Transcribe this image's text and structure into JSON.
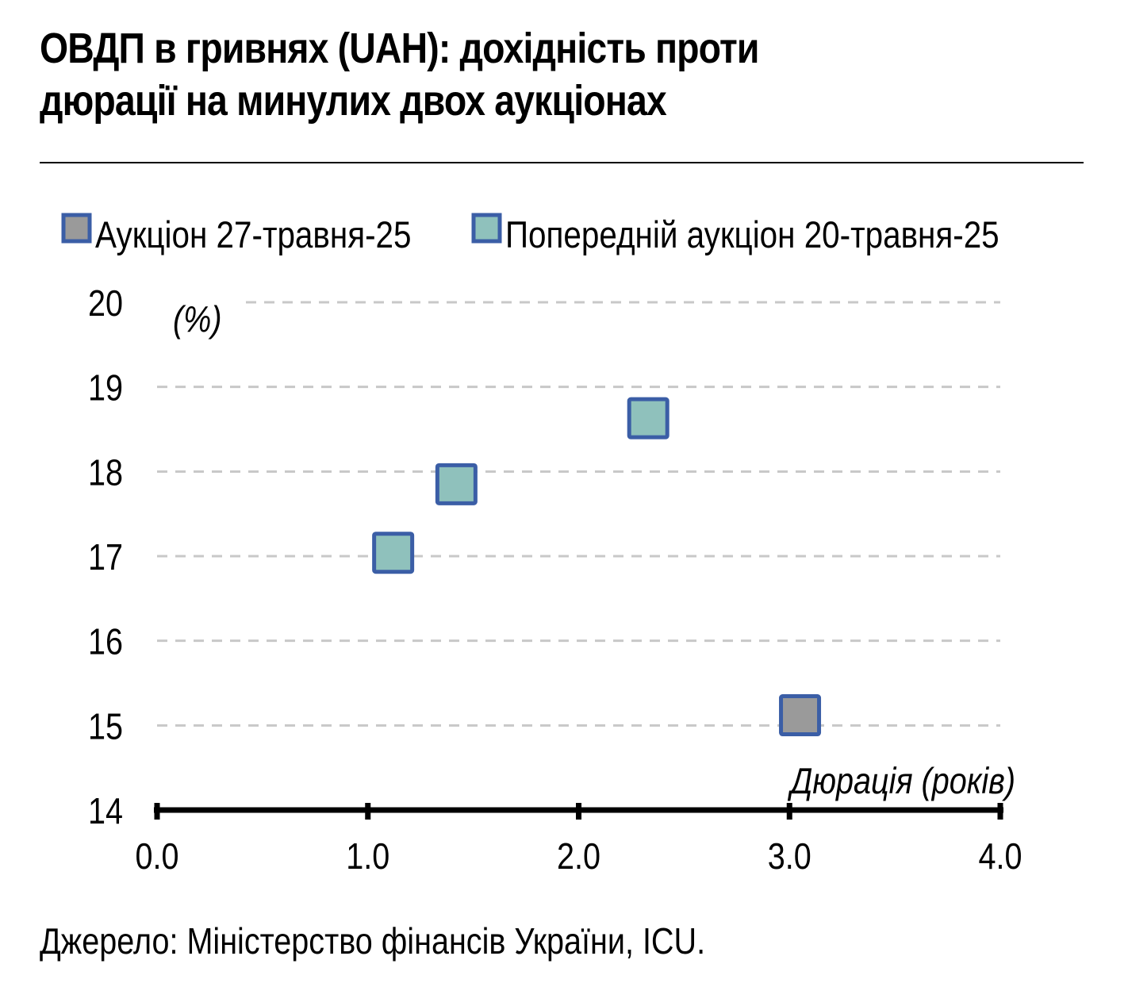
{
  "header": {
    "title_line1": "ОВДП в гривнях (UAH): дохідність проти",
    "title_line2": "дюрації на минулих двох аукціонах"
  },
  "footer": {
    "source": "Джерело: Міністерство фінансів України, ICU."
  },
  "colors": {
    "current_fill": "#9a9a9a",
    "previous_fill": "#8fc1bc",
    "marker_border": "#3b5ea6",
    "grid": "#c8c8c8",
    "axis": "#000000"
  },
  "chart_data": {
    "type": "scatter",
    "title": "ОВДП в гривнях (UAH): дохідність проти дюрації на минулих двох аукціонах",
    "xlabel": "Дюрація (років)",
    "ylabel": "(%)",
    "xlim": [
      0,
      4
    ],
    "ylim": [
      14,
      20
    ],
    "x_ticks": [
      "0.0",
      "1.0",
      "2.0",
      "3.0",
      "4.0"
    ],
    "y_ticks": [
      "14",
      "15",
      "16",
      "17",
      "18",
      "19",
      "20"
    ],
    "grid": "horizontal dashed",
    "legend_position": "top",
    "series": [
      {
        "name": "Аукціон 27-травня-25",
        "points": [
          {
            "x": 3.05,
            "y": 15.12
          }
        ]
      },
      {
        "name": "Попередній аукціон 20-травня-25",
        "points": [
          {
            "x": 1.12,
            "y": 17.04
          },
          {
            "x": 1.42,
            "y": 17.85
          },
          {
            "x": 2.33,
            "y": 18.63
          }
        ]
      }
    ]
  }
}
